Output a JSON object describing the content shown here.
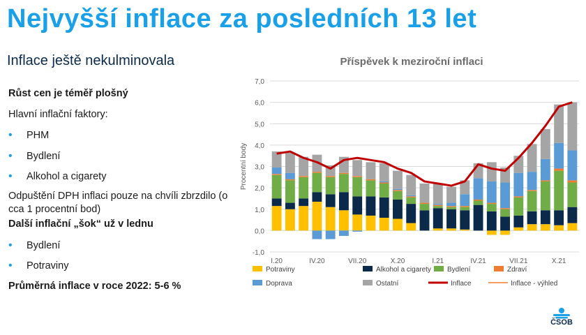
{
  "slide": {
    "title": "Nejvyšší inflace za posledních 13 let",
    "subtitle": "Inflace ještě nekulminovala"
  },
  "left": {
    "heading1": "Růst cen je téměř plošný",
    "factors_label": "Hlavní inflační faktory:",
    "factors": [
      "PHM",
      "Bydlení",
      "Alkohol a cigarety"
    ],
    "vat_note": "Odpuštění DPH inflaci pouze na chvíli zbrzdilo (o cca 1 procentní bod)",
    "heading2": "Další inflační „šok“ už v lednu",
    "shocks": [
      "Bydlení",
      "Potraviny"
    ],
    "avg": "Průměrná inflace v roce 2022: 5-6 %"
  },
  "logo": {
    "text": "ČSOB",
    "color": "#1aa0e8"
  },
  "chart_data": {
    "type": "bar",
    "title": "Příspěvek k meziroční inflaci",
    "ylabel": "Procentní body",
    "ylim": [
      -1.0,
      7.0
    ],
    "yticks": [
      "-1,0",
      "0,0",
      "1,0",
      "2,0",
      "3,0",
      "4,0",
      "5,0",
      "6,0",
      "7,0"
    ],
    "xticklabels": [
      "I.20",
      "IV.20",
      "VII.20",
      "X.20",
      "I.21",
      "IV.21",
      "VII.21",
      "X.21"
    ],
    "categories": [
      "I.20",
      "II.20",
      "III.20",
      "IV.20",
      "V.20",
      "VI.20",
      "VII.20",
      "VIII.20",
      "IX.20",
      "X.20",
      "XI.20",
      "XII.20",
      "I.21",
      "II.21",
      "III.21",
      "IV.21",
      "V.21",
      "VI.21",
      "VII.21",
      "VIII.21",
      "IX.21",
      "X.21",
      "XI.21"
    ],
    "stacked": true,
    "grid": true,
    "legend_position": "bottom",
    "series": [
      {
        "name": "Potraviny",
        "color": "#ffc000",
        "values": [
          1.15,
          1.0,
          1.15,
          1.35,
          1.1,
          0.95,
          0.75,
          0.7,
          0.6,
          0.55,
          0.35,
          0.0,
          0.1,
          0.1,
          0.05,
          0.0,
          -0.2,
          -0.2,
          0.15,
          0.3,
          0.3,
          0.25,
          0.35
        ]
      },
      {
        "name": "Alkohol a cigarety",
        "color": "#0b2a4a",
        "values": [
          0.35,
          0.3,
          0.35,
          0.45,
          0.6,
          0.85,
          0.85,
          0.9,
          0.95,
          0.9,
          0.9,
          0.95,
          0.95,
          0.9,
          0.9,
          1.2,
          0.9,
          0.65,
          0.55,
          0.6,
          0.65,
          0.7,
          0.75
        ]
      },
      {
        "name": "Bydlení",
        "color": "#70ad47",
        "values": [
          1.1,
          1.05,
          1.0,
          0.9,
          0.8,
          0.85,
          0.9,
          0.75,
          0.65,
          0.4,
          0.3,
          0.3,
          0.1,
          0.1,
          0.15,
          0.2,
          0.35,
          0.35,
          0.85,
          0.95,
          1.35,
          1.85,
          1.15
        ]
      },
      {
        "name": "Zdraví",
        "color": "#ed7d31",
        "values": [
          0.05,
          0.05,
          0.05,
          0.05,
          0.05,
          0.05,
          0.05,
          0.05,
          0.05,
          0.05,
          0.05,
          0.05,
          0.05,
          0.05,
          0.05,
          0.05,
          0.05,
          0.05,
          0.05,
          0.05,
          0.05,
          0.1,
          0.1
        ]
      },
      {
        "name": "Doprava",
        "color": "#5b9bd5",
        "values": [
          0.3,
          0.3,
          0.0,
          -0.4,
          -0.4,
          -0.25,
          -0.05,
          0.0,
          0.05,
          0.05,
          0.05,
          0.0,
          0.05,
          0.15,
          0.55,
          1.0,
          1.0,
          1.2,
          1.1,
          0.85,
          1.0,
          1.2,
          1.4
        ]
      },
      {
        "name": "Ostatní",
        "color": "#a5a5a5",
        "values": [
          0.75,
          0.95,
          0.9,
          0.8,
          0.5,
          0.75,
          0.75,
          0.8,
          0.85,
          0.85,
          0.95,
          0.9,
          0.95,
          0.75,
          0.65,
          0.7,
          0.9,
          0.7,
          0.8,
          1.3,
          1.4,
          1.8,
          2.25
        ]
      }
    ],
    "line_series": [
      {
        "name": "Inflace",
        "color": "#c00000",
        "values": [
          3.6,
          3.7,
          3.4,
          3.2,
          2.9,
          3.3,
          3.4,
          3.3,
          3.2,
          2.9,
          2.7,
          2.3,
          2.2,
          2.1,
          2.3,
          3.1,
          2.9,
          2.8,
          3.4,
          4.1,
          4.9,
          5.8,
          6.0
        ]
      }
    ],
    "legend": [
      {
        "name": "Potraviny",
        "type": "box",
        "color": "#ffc000"
      },
      {
        "name": "Alkohol a cigarety",
        "type": "box",
        "color": "#0b2a4a"
      },
      {
        "name": "Bydlení",
        "type": "box",
        "color": "#70ad47"
      },
      {
        "name": "Zdraví",
        "type": "box",
        "color": "#ed7d31"
      },
      {
        "name": "Doprava",
        "type": "box",
        "color": "#5b9bd5"
      },
      {
        "name": "Ostatní",
        "type": "box",
        "color": "#a5a5a5"
      },
      {
        "name": "Inflace",
        "type": "line",
        "color": "#c00000"
      },
      {
        "name": "Inflace - výhled",
        "type": "thinline",
        "color": "#ed7d31"
      }
    ]
  }
}
